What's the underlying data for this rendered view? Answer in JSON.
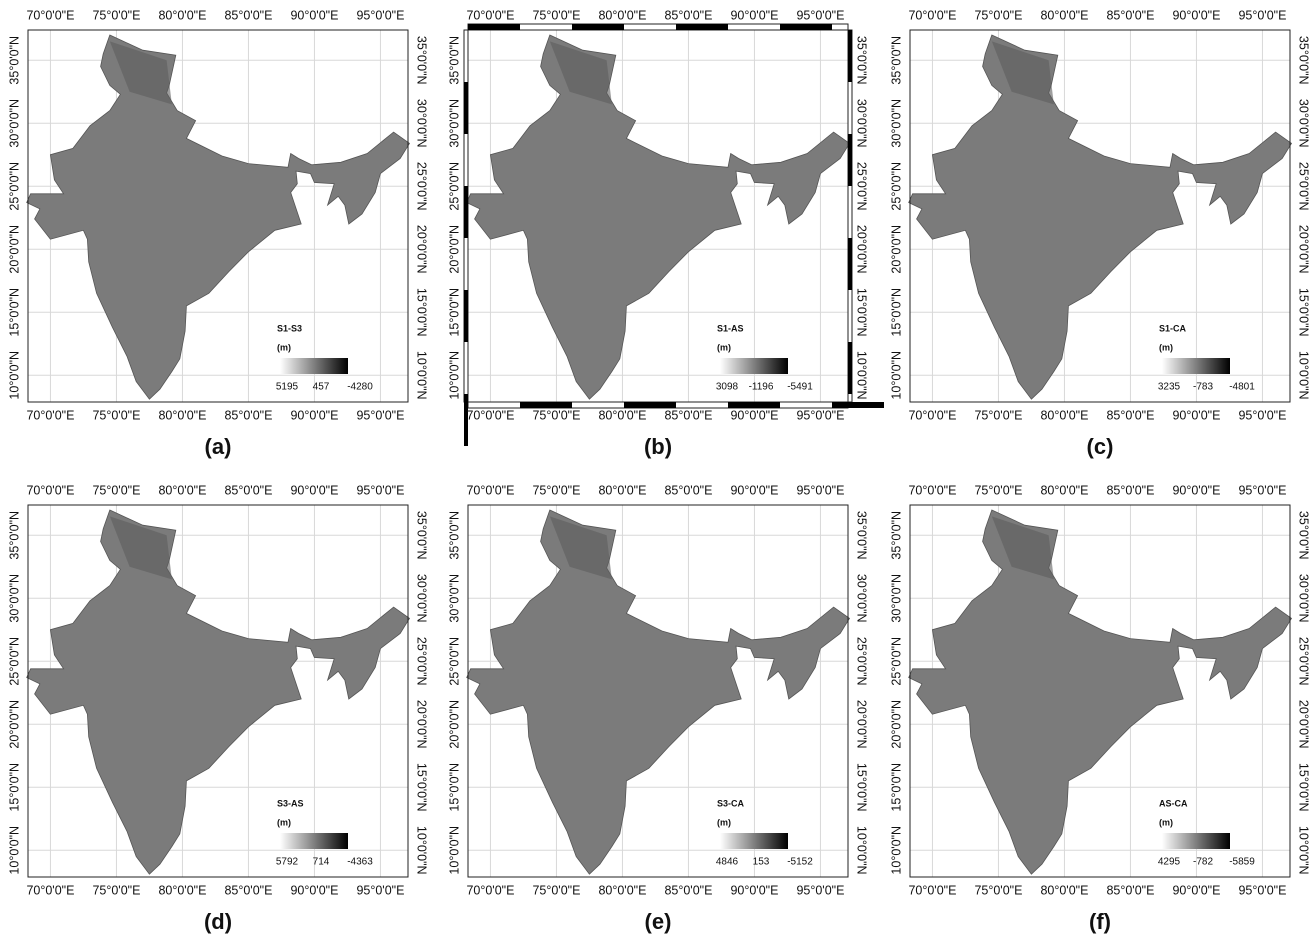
{
  "x_tick_labels": [
    "70°0'0\"E",
    "75°0'0\"E",
    "80°0'0\"E",
    "85°0'0\"E",
    "90°0'0\"E",
    "95°0'0\"E"
  ],
  "y_tick_labels": [
    "10°0'0\"N",
    "15°0'0\"N",
    "20°0'0\"N",
    "25°0'0\"N",
    "30°0'0\"N",
    "35°0'0\"N"
  ],
  "panels": [
    {
      "label": "(a)",
      "legend": {
        "title": "S1-S3",
        "unit": "(m)",
        "values": [
          5195,
          457,
          -4280
        ]
      }
    },
    {
      "label": "(b)",
      "legend": {
        "title": "S1-AS",
        "unit": "(m)",
        "values": [
          3098,
          -1196,
          -5491
        ]
      }
    },
    {
      "label": "(c)",
      "legend": {
        "title": "S1-CA",
        "unit": "(m)",
        "values": [
          3235,
          -783,
          -4801
        ]
      }
    },
    {
      "label": "(d)",
      "legend": {
        "title": "S3-AS",
        "unit": "(m)",
        "values": [
          5792,
          714,
          -4363
        ]
      }
    },
    {
      "label": "(e)",
      "legend": {
        "title": "S3-CA",
        "unit": "(m)",
        "values": [
          4846,
          153,
          -5152
        ]
      }
    },
    {
      "label": "(f)",
      "legend": {
        "title": "AS-CA",
        "unit": "(m)",
        "values": [
          4295,
          -782,
          -5859
        ]
      }
    }
  ]
}
